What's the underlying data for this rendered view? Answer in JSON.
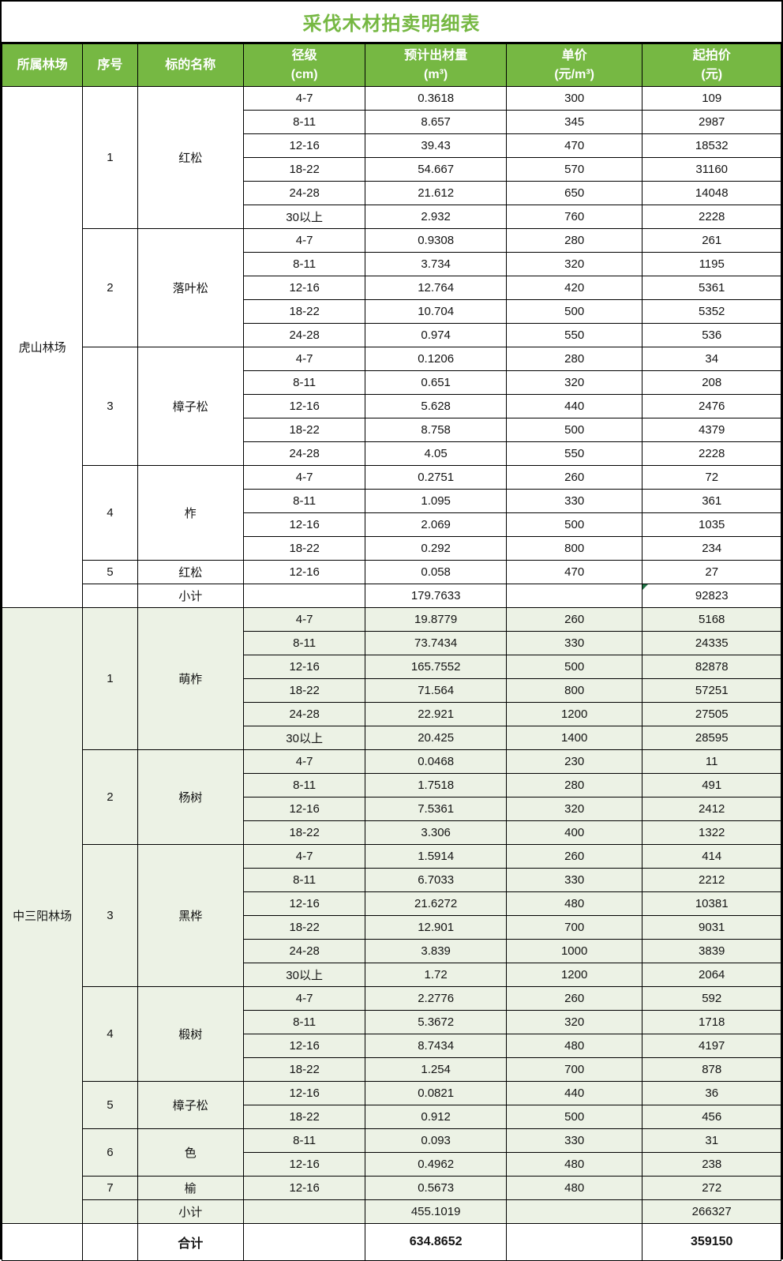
{
  "colors": {
    "accent_green": "#76b843",
    "band_green": "#ecf2e5",
    "flag_green": "#217346",
    "border_black": "#000000",
    "header_text": "#ffffff",
    "title_text": "#76b843"
  },
  "table": {
    "title": "采伐木材拍卖明细表",
    "columns": [
      "所属林场",
      "序号",
      "标的名称",
      "径级\n(cm)",
      "预计出材量\n(m³)",
      "单价\n(元/m³)",
      "起拍价\n(元)"
    ],
    "farms": [
      {
        "name": "虎山林场",
        "theme": "white",
        "groups": [
          {
            "no": "1",
            "species": "红松",
            "rows": [
              [
                "4-7",
                "0.3618",
                "300",
                "109"
              ],
              [
                "8-11",
                "8.657",
                "345",
                "2987"
              ],
              [
                "12-16",
                "39.43",
                "470",
                "18532"
              ],
              [
                "18-22",
                "54.667",
                "570",
                "31160"
              ],
              [
                "24-28",
                "21.612",
                "650",
                "14048"
              ],
              [
                "30以上",
                "2.932",
                "760",
                "2228"
              ]
            ]
          },
          {
            "no": "2",
            "species": "落叶松",
            "rows": [
              [
                "4-7",
                "0.9308",
                "280",
                "261"
              ],
              [
                "8-11",
                "3.734",
                "320",
                "1195"
              ],
              [
                "12-16",
                "12.764",
                "420",
                "5361"
              ],
              [
                "18-22",
                "10.704",
                "500",
                "5352"
              ],
              [
                "24-28",
                "0.974",
                "550",
                "536"
              ]
            ]
          },
          {
            "no": "3",
            "species": "樟子松",
            "rows": [
              [
                "4-7",
                "0.1206",
                "280",
                "34"
              ],
              [
                "8-11",
                "0.651",
                "320",
                "208"
              ],
              [
                "12-16",
                "5.628",
                "440",
                "2476"
              ],
              [
                "18-22",
                "8.758",
                "500",
                "4379"
              ],
              [
                "24-28",
                "4.05",
                "550",
                "2228"
              ]
            ]
          },
          {
            "no": "4",
            "species": "柞",
            "rows": [
              [
                "4-7",
                "0.2751",
                "260",
                "72"
              ],
              [
                "8-11",
                "1.095",
                "330",
                "361"
              ],
              [
                "12-16",
                "2.069",
                "500",
                "1035"
              ],
              [
                "18-22",
                "0.292",
                "800",
                "234"
              ]
            ]
          },
          {
            "no": "5",
            "species": "红松",
            "rows": [
              [
                "12-16",
                "0.058",
                "470",
                "27"
              ]
            ]
          }
        ],
        "subtotal": {
          "label": "小计",
          "volume": "179.7633",
          "start_price": "92823",
          "flag": true
        }
      },
      {
        "name": "中三阳林场",
        "theme": "green",
        "groups": [
          {
            "no": "1",
            "species": "萌柞",
            "rows": [
              [
                "4-7",
                "19.8779",
                "260",
                "5168"
              ],
              [
                "8-11",
                "73.7434",
                "330",
                "24335"
              ],
              [
                "12-16",
                "165.7552",
                "500",
                "82878"
              ],
              [
                "18-22",
                "71.564",
                "800",
                "57251"
              ],
              [
                "24-28",
                "22.921",
                "1200",
                "27505"
              ],
              [
                "30以上",
                "20.425",
                "1400",
                "28595"
              ]
            ]
          },
          {
            "no": "2",
            "species": "杨树",
            "rows": [
              [
                "4-7",
                "0.0468",
                "230",
                "11"
              ],
              [
                "8-11",
                "1.7518",
                "280",
                "491"
              ],
              [
                "12-16",
                "7.5361",
                "320",
                "2412"
              ],
              [
                "18-22",
                "3.306",
                "400",
                "1322"
              ]
            ]
          },
          {
            "no": "3",
            "species": "黑桦",
            "rows": [
              [
                "4-7",
                "1.5914",
                "260",
                "414"
              ],
              [
                "8-11",
                "6.7033",
                "330",
                "2212"
              ],
              [
                "12-16",
                "21.6272",
                "480",
                "10381"
              ],
              [
                "18-22",
                "12.901",
                "700",
                "9031"
              ],
              [
                "24-28",
                "3.839",
                "1000",
                "3839"
              ],
              [
                "30以上",
                "1.72",
                "1200",
                "2064"
              ]
            ]
          },
          {
            "no": "4",
            "species": "椴树",
            "rows": [
              [
                "4-7",
                "2.2776",
                "260",
                "592"
              ],
              [
                "8-11",
                "5.3672",
                "320",
                "1718"
              ],
              [
                "12-16",
                "8.7434",
                "480",
                "4197"
              ],
              [
                "18-22",
                "1.254",
                "700",
                "878"
              ]
            ]
          },
          {
            "no": "5",
            "species": "樟子松",
            "rows": [
              [
                "12-16",
                "0.0821",
                "440",
                "36"
              ],
              [
                "18-22",
                "0.912",
                "500",
                "456"
              ]
            ]
          },
          {
            "no": "6",
            "species": "色",
            "rows": [
              [
                "8-11",
                "0.093",
                "330",
                "31"
              ],
              [
                "12-16",
                "0.4962",
                "480",
                "238"
              ]
            ]
          },
          {
            "no": "7",
            "species": "榆",
            "rows": [
              [
                "12-16",
                "0.5673",
                "480",
                "272"
              ]
            ]
          }
        ],
        "subtotal": {
          "label": "小计",
          "volume": "455.1019",
          "start_price": "266327",
          "flag": false
        }
      }
    ],
    "total": {
      "label": "合计",
      "volume": "634.8652",
      "start_price": "359150"
    }
  }
}
